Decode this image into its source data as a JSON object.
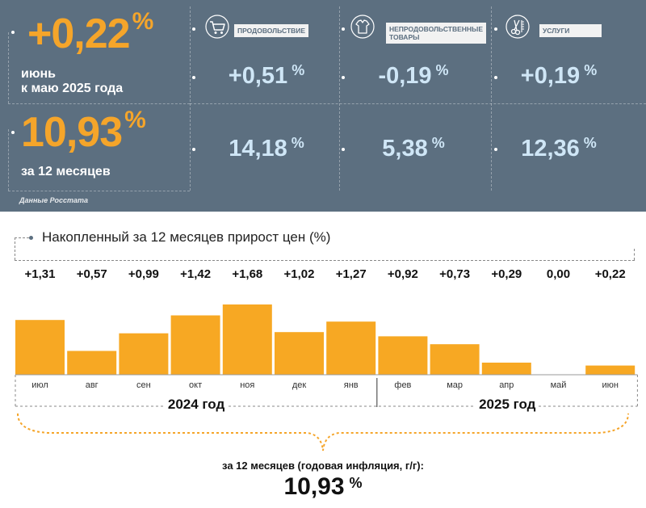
{
  "header": {
    "monthly": {
      "value": "+0,22",
      "unit": "%",
      "line1": "июнь",
      "line2": "к маю 2025 года"
    },
    "annual": {
      "value": "10,93",
      "unit": "%",
      "label": "за 12 месяцев"
    },
    "categories": [
      {
        "label": "ПРОДОВОЛЬСТВИЕ",
        "icon": "shopping-cart-icon",
        "monthly": "+0,51",
        "annual": "14,18",
        "unit": "%"
      },
      {
        "label": "НЕПРОДОВОЛЬСТВЕННЫЕ ТОВАРЫ",
        "label_line1": "НЕПРОДОВОЛЬСТВЕННЫЕ",
        "label_line2": "ТОВАРЫ",
        "icon": "clothing-icon",
        "monthly": "-0,19",
        "annual": "5,38",
        "unit": "%"
      },
      {
        "label": "УСЛУГИ",
        "icon": "scissors-comb-icon",
        "monthly": "+0,19",
        "annual": "12,36",
        "unit": "%"
      }
    ],
    "source": "Данные Росстата"
  },
  "chart_data": {
    "type": "bar",
    "title": "Накопленный за 12 месяцев прирост цен (%)",
    "categories": [
      "июл",
      "авг",
      "сен",
      "окт",
      "ноя",
      "дек",
      "янв",
      "фев",
      "мар",
      "апр",
      "май",
      "июн"
    ],
    "values": [
      1.31,
      0.57,
      0.99,
      1.42,
      1.68,
      1.02,
      1.27,
      0.92,
      0.73,
      0.29,
      0.0,
      0.22
    ],
    "value_labels": [
      "+1,31",
      "+0,57",
      "+0,99",
      "+1,42",
      "+1,68",
      "+1,02",
      "+1,27",
      "+0,92",
      "+0,73",
      "+0,29",
      "0,00",
      "+0,22"
    ],
    "year_groups": [
      {
        "label": "2024 год",
        "months": [
          "июл",
          "авг",
          "сен",
          "окт",
          "ноя",
          "дек"
        ]
      },
      {
        "label": "2025 год",
        "months": [
          "янв",
          "фев",
          "мар",
          "апр",
          "май",
          "июн"
        ]
      }
    ],
    "bar_color": "#f7a823",
    "grid": false,
    "summary_label": "за 12 месяцев (годовая инфляция, г/г):",
    "summary_value": "10,93",
    "summary_unit": "%"
  },
  "colors": {
    "panel": "#5c6f80",
    "accent": "#f5a52a",
    "value_text": "#cfe6f6"
  }
}
